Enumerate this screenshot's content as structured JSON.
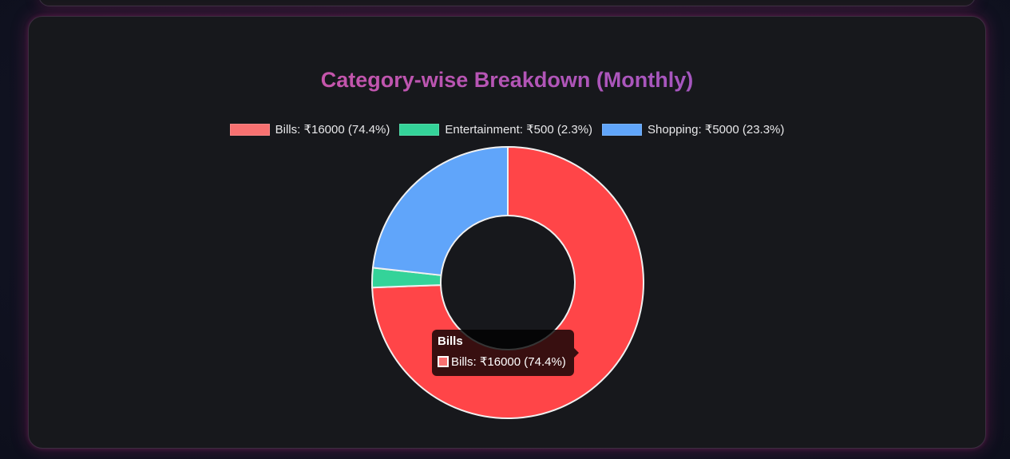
{
  "chart_data": {
    "type": "doughnut",
    "title": "Category-wise Breakdown (Monthly)",
    "categories": [
      "Bills",
      "Entertainment",
      "Shopping"
    ],
    "values": [
      16000,
      500,
      5000
    ],
    "legend_labels": [
      "Bills: ₹16000 (74.4%)",
      "Entertainment: ₹500 (2.3%)",
      "Shopping: ₹5000 (23.3%)"
    ],
    "colors": [
      "#ff4548",
      "#34d399",
      "#60a5fa"
    ],
    "legend_colors": [
      "#f87171",
      "#34d399",
      "#60a5fa"
    ],
    "legend_position": "top",
    "tooltip": {
      "title": "Bills",
      "label": "Bills: ₹16000 (74.4%)",
      "swatch_color": "#f87171"
    }
  }
}
